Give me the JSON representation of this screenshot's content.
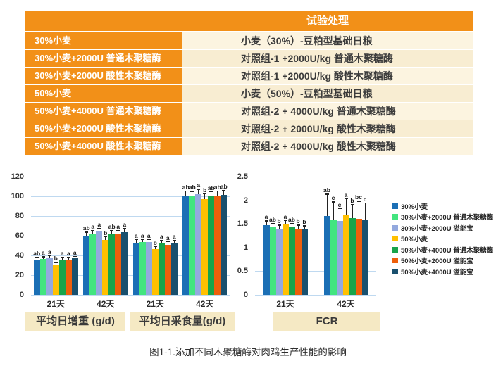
{
  "table": {
    "header": "试验处理",
    "rows": [
      {
        "treatment": "30%小麦",
        "description": "小麦（30%）-豆粕型基础日粮"
      },
      {
        "treatment": "30%小麦+2000U 普通木聚糖酶",
        "description": "对照组-1 +2000U/kg 普通木聚糖酶"
      },
      {
        "treatment": "30%小麦+2000U 酸性木聚糖酶",
        "description": "对照组-1 +2000U/kg 酸性木聚糖酶"
      },
      {
        "treatment": "50%小麦",
        "description": "小麦（50%）-豆粕型基础日粮"
      },
      {
        "treatment": "50%小麦+4000U 普通木聚糖酶",
        "description": "对照组-2 + 4000U/kg 普通木聚糖酶"
      },
      {
        "treatment": "50%小麦+2000U 酸性木聚糖酶",
        "description": "对照组-2 + 2000U/kg 酸性木聚糖酶"
      },
      {
        "treatment": "50%小麦+4000U 酸性木聚糖酶",
        "description": "对照组-2 + 4000U/kg 酸性木聚糖酶"
      }
    ],
    "colors": {
      "orange": "#F29018",
      "cream": "#FCF4E0",
      "cream_alt": "#F8EDD2",
      "text_dark": "#3B3B3B"
    }
  },
  "chart_data": {
    "type": "bar",
    "legend_position": "right",
    "grid": true,
    "gridline_color": "#BFD9F0",
    "legend_entries": [
      {
        "label": "30%小麦",
        "color": "#1B6FB5"
      },
      {
        "label": "30%小麦+2000U 普通木聚糖酶",
        "color": "#42E57F"
      },
      {
        "label": "30%小麦+2000U 溢能宝",
        "color": "#93A9DE"
      },
      {
        "label": "50%小麦",
        "color": "#FFC000"
      },
      {
        "label": "50%小麦+4000U 普通木聚糖酶",
        "color": "#18A44B"
      },
      {
        "label": "50%小麦+2000U 溢能宝",
        "color": "#EE5F0B"
      },
      {
        "label": "50%小麦+4000U 溢能宝",
        "color": "#19506E"
      }
    ],
    "panels": [
      {
        "title": "平均日增重 (g/d)",
        "axis": {
          "min": 0,
          "max": 120,
          "step": 20,
          "side": "left"
        },
        "groups": [
          {
            "label": "21天",
            "values": [
              35.5,
              36.5,
              37.5,
              31,
              36,
              36,
              37
            ],
            "errors": [
              2,
              1.5,
              1.5,
              1.5,
              1.5,
              1.5,
              1.5
            ],
            "sig": [
              "ab",
              "a",
              "a",
              "b",
              "a",
              "a",
              "a"
            ]
          },
          {
            "label": "42天",
            "values": [
              60,
              62,
              64,
              56,
              62,
              62.5,
              63.5
            ],
            "errors": [
              3,
              2.5,
              3,
              2.5,
              2.5,
              2.5,
              3
            ],
            "sig": [
              "ab",
              "a",
              "a",
              "b",
              "ab",
              "a",
              "a"
            ]
          }
        ]
      },
      {
        "title": "平均日采食量(g/d)",
        "axis": {
          "min": 0,
          "max": 120,
          "step": 20,
          "side": "shared-left"
        },
        "groups": [
          {
            "label": "21天",
            "values": [
              53,
              53.5,
              53.5,
              46.5,
              52.5,
              51,
              52.5
            ],
            "errors": [
              2.5,
              2,
              2,
              2,
              2.5,
              2.5,
              2.5
            ],
            "sig": [
              "a",
              "a",
              "a",
              "b",
              "a",
              "a",
              "a"
            ]
          },
          {
            "label": "42天",
            "values": [
              101,
              100.5,
              102.5,
              97,
              100,
              101,
              101.5
            ],
            "errors": [
              4,
              4,
              4,
              5,
              4,
              4,
              4
            ],
            "sig": [
              "ab",
              "ab",
              "a",
              "b",
              "ab",
              "ab",
              "ab"
            ]
          }
        ]
      },
      {
        "title": "FCR",
        "axis": {
          "min": 0,
          "max": 2.5,
          "step": 0.5,
          "side": "left-of-panel"
        },
        "groups": [
          {
            "label": "21天",
            "values": [
              1.48,
              1.44,
              1.4,
              1.5,
              1.43,
              1.4,
              1.39
            ],
            "errors": [
              0.07,
              0.06,
              0.06,
              0.06,
              0.06,
              0.06,
              0.06
            ],
            "sig": [
              "a",
              "ab",
              "b",
              "a",
              "ab",
              "b",
              "b"
            ]
          },
          {
            "label": "42天",
            "values": [
              1.66,
              1.59,
              1.57,
              1.7,
              1.62,
              1.6,
              1.59
            ],
            "errors": [
              0.46,
              0.36,
              0.24,
              0.32,
              0.28,
              0.37,
              0.34
            ],
            "sig": [
              "ab",
              "c",
              "c",
              "a",
              "b",
              "bc",
              "c"
            ]
          }
        ]
      }
    ]
  },
  "caption": "图1-1.添加不同木聚糖酶对肉鸡生产性能的影响"
}
